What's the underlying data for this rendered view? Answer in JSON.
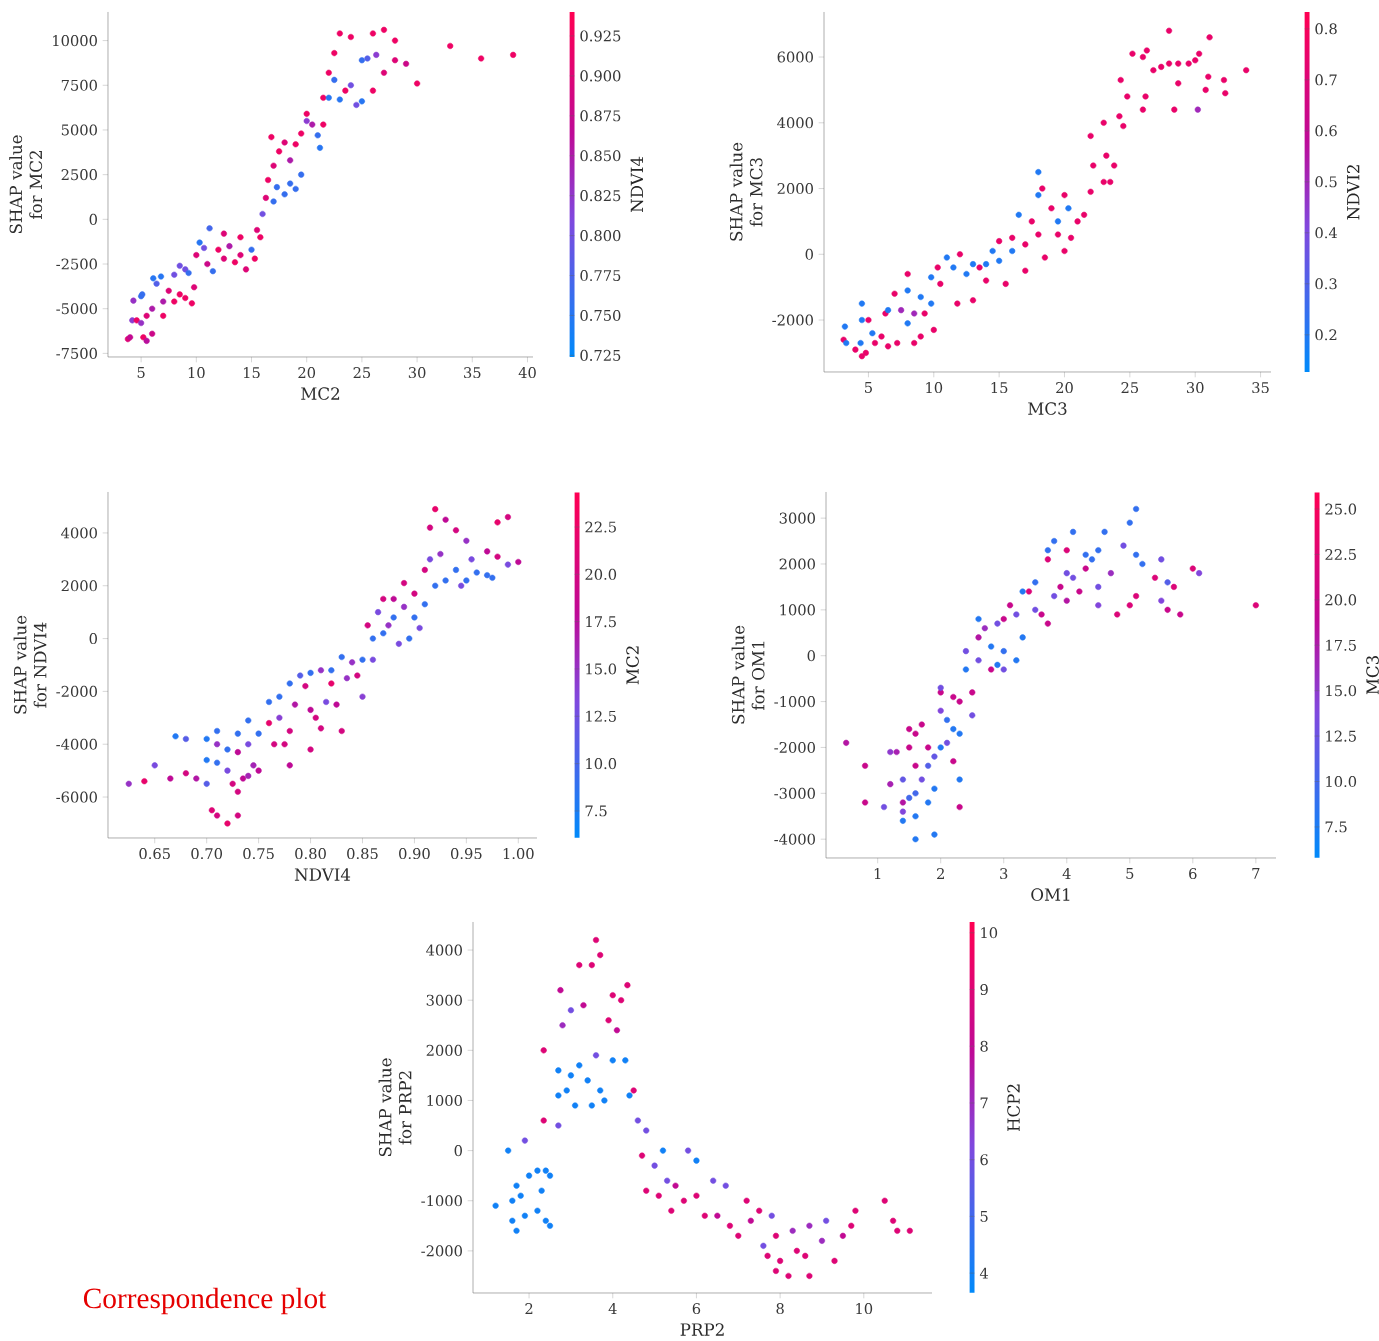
{
  "chart_data": [
    {
      "type": "scatter",
      "marker": "circle",
      "xlabel": "MC2",
      "ylabel": "SHAP value for MC2",
      "clabel": "NDVI4",
      "xlim": [
        2.0,
        40.5
      ],
      "ylim": [
        -7700,
        11600
      ],
      "xticks": [
        5,
        10,
        15,
        20,
        25,
        30,
        35,
        40
      ],
      "yticks": [
        -7500,
        -5000,
        -2500,
        0,
        2500,
        5000,
        7500,
        10000
      ],
      "clim": [
        0.724,
        0.94
      ],
      "cticks": [
        0.725,
        {
          "value": 0.75,
          "label": "0.750"
        },
        0.775,
        {
          "value": 0.8,
          "label": "0.800"
        },
        0.825,
        {
          "value": 0.85,
          "label": "0.850"
        },
        0.875,
        {
          "value": 0.9,
          "label": "0.900"
        },
        0.925
      ],
      "x": [
        3.8,
        4,
        4.2,
        4.3,
        4.6,
        5,
        5,
        5.1,
        5.2,
        5.5,
        5.5,
        6,
        6,
        6.1,
        6.4,
        6.8,
        7,
        7,
        7.5,
        8,
        8,
        8.5,
        8.5,
        9,
        9,
        9.3,
        9.6,
        9.8,
        10,
        10.3,
        10.7,
        11,
        11.2,
        11.5,
        12,
        12.5,
        12.5,
        13,
        13.5,
        14,
        14,
        14.5,
        15,
        15.3,
        15.5,
        15.8,
        16,
        16.3,
        16.5,
        16.8,
        17,
        17,
        17.3,
        17.5,
        18,
        18,
        18.5,
        18.5,
        19,
        19,
        19.5,
        19.5,
        20,
        20,
        20.5,
        21,
        21.2,
        21.5,
        21.5,
        22,
        22,
        22.5,
        22.5,
        23,
        23,
        23.5,
        24,
        24,
        24.5,
        25,
        25,
        25.5,
        26,
        26,
        26.3,
        27,
        27,
        28,
        28,
        29,
        30,
        33,
        35.8,
        38.7
      ],
      "values": [
        -6700,
        -6600,
        -5650,
        -4550,
        -5650,
        -5800,
        -4300,
        -4200,
        -6600,
        -6800,
        -5400,
        -6400,
        -5000,
        -3300,
        -3600,
        -3200,
        -5400,
        -4600,
        -4000,
        -3100,
        -4600,
        -2600,
        -4200,
        -4400,
        -2800,
        -3000,
        -4700,
        -3800,
        -2000,
        -1300,
        -1600,
        -2500,
        -500,
        -2900,
        -1700,
        -800,
        -2200,
        -1500,
        -2400,
        -1000,
        -2000,
        -2800,
        -1700,
        -2200,
        -600,
        -1000,
        300,
        1200,
        2200,
        4600,
        3000,
        1000,
        1800,
        3800,
        4300,
        1400,
        3300,
        2000,
        4200,
        1700,
        2500,
        4800,
        5900,
        5500,
        5300,
        4700,
        4000,
        5300,
        6800,
        8200,
        6800,
        9300,
        7800,
        6700,
        10400,
        7200,
        10200,
        7500,
        6400,
        8900,
        6600,
        9000,
        10400,
        7200,
        9200,
        10600,
        8200,
        10000,
        8900,
        8700,
        7600,
        9700,
        9000,
        9200
      ],
      "cvalues": [
        0.9,
        0.87,
        0.82,
        0.83,
        0.92,
        0.83,
        0.76,
        0.76,
        0.92,
        0.86,
        0.9,
        0.88,
        0.85,
        0.75,
        0.78,
        0.75,
        0.92,
        0.85,
        0.9,
        0.8,
        0.92,
        0.8,
        0.92,
        0.92,
        0.8,
        0.76,
        0.92,
        0.9,
        0.9,
        0.75,
        0.8,
        0.88,
        0.77,
        0.76,
        0.92,
        0.9,
        0.9,
        0.85,
        0.92,
        0.92,
        0.9,
        0.9,
        0.76,
        0.92,
        0.9,
        0.92,
        0.8,
        0.9,
        0.92,
        0.92,
        0.9,
        0.76,
        0.76,
        0.92,
        0.9,
        0.76,
        0.85,
        0.76,
        0.92,
        0.76,
        0.76,
        0.92,
        0.92,
        0.82,
        0.85,
        0.76,
        0.75,
        0.92,
        0.92,
        0.92,
        0.75,
        0.92,
        0.76,
        0.75,
        0.92,
        0.92,
        0.92,
        0.8,
        0.8,
        0.76,
        0.75,
        0.78,
        0.92,
        0.92,
        0.82,
        0.92,
        0.9,
        0.92,
        0.9,
        0.88,
        0.92,
        0.92,
        0.92,
        0.92
      ]
    },
    {
      "type": "scatter",
      "marker": "circle",
      "xlabel": "MC3",
      "ylabel": "SHAP value for MC3",
      "clabel": "NDVI2",
      "xlim": [
        1.6,
        35.8
      ],
      "ylim": [
        -3580,
        7370
      ],
      "xticks": [
        5,
        10,
        15,
        20,
        25,
        30,
        35
      ],
      "yticks": [
        -2000,
        0,
        2000,
        4000,
        6000
      ],
      "clim": [
        0.127,
        0.833
      ],
      "cticks": [
        0.2,
        0.3,
        0.4,
        0.5,
        0.6,
        0.7,
        0.8
      ],
      "x": [
        3.1,
        3.2,
        3.3,
        4,
        4.4,
        4.5,
        4.5,
        4.5,
        4.8,
        5,
        5.3,
        5.5,
        6,
        6.3,
        6.5,
        6.5,
        7,
        7.2,
        7.5,
        8,
        8,
        8,
        8.5,
        8.5,
        9,
        9,
        9.3,
        9.8,
        9.8,
        10,
        10.3,
        10.5,
        11,
        11.5,
        11.8,
        12,
        12.5,
        13,
        13,
        13.5,
        14,
        14,
        14.5,
        15,
        15,
        15.5,
        16,
        16,
        16.5,
        17,
        17,
        17.5,
        18,
        18,
        18,
        18.3,
        18.5,
        19,
        19.5,
        19.5,
        20,
        20,
        20.3,
        20.5,
        21,
        21.5,
        22,
        22,
        22.2,
        23,
        23,
        23.2,
        23.5,
        23.8,
        24.2,
        24.3,
        24.5,
        24.8,
        25.2,
        26,
        26,
        26.2,
        26.3,
        26.8,
        27.4,
        28,
        28,
        28.4,
        28.7,
        28.7,
        29.5,
        30,
        30.2,
        30.3,
        30.8,
        31,
        31.1,
        32.2,
        32.3,
        33.9
      ],
      "values": [
        -2600,
        -2200,
        -2700,
        -2900,
        -2700,
        -1500,
        -2000,
        -3100,
        -3000,
        -2000,
        -2400,
        -2700,
        -2500,
        -1800,
        -1700,
        -2800,
        -1200,
        -2700,
        -1700,
        -1100,
        -600,
        -2100,
        -1800,
        -2700,
        -1300,
        -2500,
        -1800,
        -1500,
        -700,
        -2300,
        -400,
        -900,
        -100,
        -400,
        -1500,
        0,
        -600,
        -1400,
        -300,
        -400,
        -300,
        -800,
        100,
        -200,
        400,
        -900,
        100,
        500,
        1200,
        300,
        -500,
        1000,
        2500,
        1800,
        600,
        2000,
        -100,
        1400,
        1000,
        600,
        1800,
        100,
        1400,
        500,
        1000,
        1200,
        1900,
        3600,
        2700,
        4000,
        2200,
        3000,
        2200,
        2700,
        4200,
        5300,
        3900,
        4800,
        6100,
        6000,
        4400,
        4800,
        6200,
        5600,
        5700,
        6800,
        5800,
        4400,
        5800,
        5200,
        5800,
        5900,
        4400,
        6100,
        5000,
        5400,
        6600,
        5300,
        4900,
        5600
      ],
      "cvalues": [
        0.75,
        0.2,
        0.2,
        0.75,
        0.2,
        0.2,
        0.2,
        0.75,
        0.75,
        0.75,
        0.2,
        0.75,
        0.75,
        0.75,
        0.2,
        0.75,
        0.75,
        0.75,
        0.5,
        0.2,
        0.75,
        0.2,
        0.5,
        0.75,
        0.2,
        0.75,
        0.75,
        0.2,
        0.2,
        0.75,
        0.75,
        0.75,
        0.2,
        0.2,
        0.75,
        0.75,
        0.2,
        0.75,
        0.2,
        0.75,
        0.2,
        0.75,
        0.2,
        0.2,
        0.75,
        0.75,
        0.2,
        0.75,
        0.2,
        0.75,
        0.75,
        0.75,
        0.2,
        0.2,
        0.75,
        0.75,
        0.75,
        0.75,
        0.2,
        0.75,
        0.75,
        0.75,
        0.2,
        0.75,
        0.75,
        0.75,
        0.75,
        0.75,
        0.75,
        0.75,
        0.75,
        0.75,
        0.75,
        0.75,
        0.75,
        0.75,
        0.75,
        0.75,
        0.75,
        0.75,
        0.75,
        0.75,
        0.75,
        0.75,
        0.75,
        0.75,
        0.75,
        0.75,
        0.75,
        0.75,
        0.75,
        0.75,
        0.5,
        0.75,
        0.75,
        0.75,
        0.75,
        0.75,
        0.75,
        0.75
      ]
    },
    {
      "type": "scatter",
      "marker": "circle",
      "xlabel": "NDVI4",
      "ylabel": "SHAP value for NDVI4",
      "clabel": "MC2",
      "xlim": [
        0.605,
        1.018
      ],
      "ylim": [
        -7550,
        5550
      ],
      "xticks": [
        0.65,
        {
          "value": 0.7,
          "label": "0.70"
        },
        0.75,
        {
          "value": 0.8,
          "label": "0.80"
        },
        0.85,
        {
          "value": 0.9,
          "label": "0.90"
        },
        0.95,
        {
          "value": 1.0,
          "label": "1.00"
        }
      ],
      "yticks": [
        -6000,
        -4000,
        -2000,
        0,
        2000,
        4000
      ],
      "clim": [
        6.07,
        24.35
      ],
      "cticks": [
        7.5,
        {
          "value": 10,
          "label": "10.0"
        },
        12.5,
        {
          "value": 15,
          "label": "15.0"
        },
        17.5,
        {
          "value": 20,
          "label": "20.0"
        },
        22.5
      ],
      "x": [
        0.625,
        0.64,
        0.65,
        0.665,
        0.67,
        0.68,
        0.68,
        0.69,
        0.7,
        0.7,
        0.7,
        0.705,
        0.71,
        0.71,
        0.71,
        0.71,
        0.72,
        0.72,
        0.72,
        0.725,
        0.73,
        0.73,
        0.73,
        0.73,
        0.735,
        0.74,
        0.74,
        0.74,
        0.745,
        0.75,
        0.75,
        0.76,
        0.76,
        0.765,
        0.77,
        0.77,
        0.775,
        0.78,
        0.78,
        0.78,
        0.785,
        0.79,
        0.795,
        0.8,
        0.8,
        0.8,
        0.805,
        0.81,
        0.81,
        0.815,
        0.82,
        0.82,
        0.825,
        0.83,
        0.83,
        0.835,
        0.84,
        0.845,
        0.85,
        0.85,
        0.855,
        0.86,
        0.86,
        0.865,
        0.87,
        0.87,
        0.875,
        0.88,
        0.88,
        0.885,
        0.89,
        0.89,
        0.895,
        0.9,
        0.9,
        0.905,
        0.91,
        0.91,
        0.915,
        0.915,
        0.92,
        0.92,
        0.925,
        0.93,
        0.93,
        0.94,
        0.94,
        0.945,
        0.95,
        0.95,
        0.955,
        0.96,
        0.97,
        0.97,
        0.975,
        0.98,
        0.98,
        0.99,
        0.99,
        1.0
      ],
      "values": [
        -5500,
        -5400,
        -4800,
        -5300,
        -3700,
        -3800,
        -5100,
        -5300,
        -3800,
        -4600,
        -5500,
        -6500,
        -3500,
        -4000,
        -4700,
        -6700,
        -4200,
        -5000,
        -7000,
        -5500,
        -3600,
        -4300,
        -5800,
        -6700,
        -5300,
        -3100,
        -4000,
        -5200,
        -4800,
        -3600,
        -5000,
        -2400,
        -3200,
        -4000,
        -2200,
        -3000,
        -4000,
        -1700,
        -4800,
        -3500,
        -2500,
        -1400,
        -1800,
        -1300,
        -2700,
        -4200,
        -3000,
        -1200,
        -3400,
        -2400,
        -1700,
        -1200,
        -2500,
        -700,
        -3500,
        -1500,
        -900,
        -1400,
        -800,
        -2200,
        500,
        0,
        -800,
        1000,
        200,
        1500,
        500,
        800,
        1500,
        -200,
        1200,
        2100,
        0,
        800,
        1700,
        400,
        1300,
        2600,
        3000,
        4200,
        4900,
        2000,
        3200,
        4500,
        2200,
        4100,
        2600,
        2000,
        3700,
        2200,
        3000,
        2500,
        3300,
        2400,
        2300,
        4400,
        3100,
        4600,
        2800,
        2900
      ],
      "cvalues": [
        15,
        22,
        13,
        18,
        8,
        11,
        20,
        17,
        8,
        8,
        11,
        21,
        9,
        15,
        9,
        20,
        9,
        13,
        22,
        20,
        9,
        18,
        20,
        20,
        18,
        9,
        13,
        16,
        16,
        9,
        18,
        9,
        22,
        20,
        9,
        14,
        20,
        9,
        18,
        20,
        17,
        11,
        20,
        9,
        18,
        20,
        20,
        15,
        20,
        13,
        22,
        9,
        18,
        9,
        20,
        15,
        15,
        20,
        9,
        14,
        20,
        9,
        13,
        13,
        9,
        20,
        15,
        9,
        18,
        13,
        15,
        20,
        9,
        9,
        20,
        13,
        9,
        20,
        13,
        20,
        22,
        9,
        15,
        18,
        9,
        20,
        9,
        13,
        15,
        9,
        13,
        9,
        18,
        9,
        9,
        22,
        20,
        20,
        13,
        18
      ]
    },
    {
      "type": "scatter",
      "marker": "circle",
      "xlabel": "OM1",
      "ylabel": "SHAP value for OM1",
      "clabel": "MC3",
      "xlim": [
        0.18,
        7.32
      ],
      "ylim": [
        -4410,
        3570
      ],
      "xticks": [
        1,
        2,
        3,
        4,
        5,
        6,
        7
      ],
      "yticks": [
        -4000,
        -3000,
        -2000,
        -1000,
        0,
        1000,
        2000,
        3000
      ],
      "clim": [
        5.79,
        25.94
      ],
      "cticks": [
        7.5,
        {
          "value": 10,
          "label": "10.0"
        },
        12.5,
        {
          "value": 15,
          "label": "15.0"
        },
        17.5,
        {
          "value": 20,
          "label": "20.0"
        },
        22.5,
        {
          "value": 25,
          "label": "25.0"
        }
      ],
      "x": [
        0.5,
        0.8,
        0.8,
        1.1,
        1.2,
        1.2,
        1.3,
        1.4,
        1.4,
        1.4,
        1.4,
        1.5,
        1.5,
        1.5,
        1.6,
        1.6,
        1.6,
        1.6,
        1.6,
        1.7,
        1.7,
        1.8,
        1.8,
        1.8,
        1.9,
        1.9,
        1.9,
        2,
        2,
        2,
        2,
        2.1,
        2.1,
        2.2,
        2.2,
        2.2,
        2.3,
        2.3,
        2.3,
        2.3,
        2.4,
        2.4,
        2.5,
        2.5,
        2.6,
        2.6,
        2.6,
        2.7,
        2.8,
        2.8,
        2.9,
        2.9,
        3,
        3,
        3,
        3.1,
        3.2,
        3.2,
        3.3,
        3.3,
        3.4,
        3.5,
        3.5,
        3.6,
        3.7,
        3.7,
        3.7,
        3.8,
        3.8,
        3.9,
        4,
        4,
        4,
        4.1,
        4.1,
        4.2,
        4.3,
        4.3,
        4.4,
        4.5,
        4.5,
        4.5,
        4.6,
        4.7,
        4.8,
        4.9,
        5,
        5,
        5.1,
        5.1,
        5.1,
        5.2,
        5.4,
        5.5,
        5.5,
        5.6,
        5.6,
        5.7,
        5.8,
        6,
        6.1,
        7
      ],
      "values": [
        -1900,
        -2400,
        -3200,
        -3300,
        -2100,
        -2800,
        -2100,
        -2700,
        -3200,
        -3400,
        -3600,
        -1600,
        -2000,
        -3100,
        -1700,
        -2400,
        -3000,
        -3500,
        -4000,
        -2700,
        -1500,
        -2000,
        -2400,
        -3200,
        -2200,
        -2900,
        -3900,
        -1200,
        -800,
        -2000,
        -700,
        -1400,
        -1900,
        -900,
        -1600,
        -2300,
        -1000,
        -1700,
        -2700,
        -3300,
        -300,
        100,
        -800,
        -1300,
        800,
        400,
        -100,
        600,
        200,
        -300,
        700,
        -200,
        800,
        100,
        -300,
        1100,
        900,
        -100,
        1400,
        400,
        1400,
        1600,
        1000,
        900,
        2300,
        2100,
        700,
        2500,
        1300,
        1500,
        2300,
        1800,
        1200,
        2700,
        1700,
        1400,
        2200,
        1900,
        2100,
        2300,
        1500,
        1100,
        2700,
        1800,
        900,
        2400,
        2900,
        1100,
        3200,
        2200,
        1300,
        2000,
        1700,
        2100,
        1200,
        1000,
        1600,
        1500,
        900,
        1900,
        1800,
        1100
      ],
      "cvalues": [
        18,
        20,
        20,
        13,
        15,
        17,
        17,
        12,
        18,
        14,
        8,
        20,
        20,
        10,
        20,
        20,
        10,
        8,
        8,
        13,
        20,
        20,
        11,
        8,
        12,
        8,
        8,
        14,
        20,
        8,
        13,
        9,
        13,
        20,
        8,
        20,
        20,
        8,
        8,
        20,
        8,
        13,
        20,
        13,
        8,
        18,
        13,
        16,
        8,
        20,
        13,
        8,
        20,
        9,
        13,
        20,
        13,
        8,
        8,
        8,
        22,
        9,
        13,
        20,
        9,
        22,
        20,
        9,
        13,
        20,
        22,
        13,
        18,
        9,
        13,
        20,
        9,
        20,
        9,
        9,
        13,
        14,
        9,
        16,
        22,
        13,
        9,
        22,
        9,
        9,
        22,
        9,
        22,
        13,
        14,
        20,
        11,
        22,
        20,
        22,
        14,
        22
      ]
    },
    {
      "type": "scatter",
      "marker": "circle",
      "xlabel": "PRP2",
      "ylabel": "SHAP value for PRP2",
      "clabel": "HCP2",
      "xlim": [
        0.66,
        11.63
      ],
      "ylim": [
        -2840,
        4560
      ],
      "xticks": [
        2,
        4,
        6,
        8,
        10
      ],
      "yticks": [
        -2000,
        -1000,
        0,
        1000,
        2000,
        3000,
        4000
      ],
      "clim": [
        3.65,
        10.19
      ],
      "cticks": [
        4,
        5,
        6,
        7,
        8,
        9,
        10
      ],
      "annotations": [
        "Correspondence plot"
      ],
      "x": [
        1.2,
        1.5,
        1.6,
        1.6,
        1.7,
        1.7,
        1.8,
        1.9,
        1.9,
        2,
        2.2,
        2.2,
        2.3,
        2.35,
        2.35,
        2.4,
        2.4,
        2.5,
        2.5,
        2.7,
        2.7,
        2.7,
        2.75,
        2.8,
        2.9,
        3,
        3,
        3.1,
        3.2,
        3.2,
        3.3,
        3.4,
        3.5,
        3.5,
        3.6,
        3.6,
        3.7,
        3.7,
        3.8,
        3.9,
        4,
        4,
        4.1,
        4.2,
        4.3,
        4.35,
        4.4,
        4.5,
        4.6,
        4.8,
        4.7,
        4.8,
        5,
        5.1,
        5.2,
        5.3,
        5.4,
        5.5,
        5.7,
        5.8,
        6,
        6,
        6.2,
        6.4,
        6.5,
        6.7,
        6.8,
        7,
        7.2,
        7.3,
        7.5,
        7.6,
        7.7,
        7.8,
        7.9,
        7.9,
        8,
        8.2,
        8.3,
        8.4,
        8.6,
        8.7,
        8.7,
        9,
        9.1,
        9.3,
        9.5,
        9.7,
        9.8,
        10.5,
        10.7,
        10.8,
        11.1
      ],
      "values": [
        -1100,
        0,
        -1000,
        -1400,
        -700,
        -1600,
        -900,
        -1300,
        200,
        -500,
        -400,
        -1200,
        -800,
        600,
        2000,
        -1400,
        -400,
        -500,
        -1500,
        500,
        1100,
        1600,
        3200,
        2500,
        1200,
        1500,
        2800,
        900,
        3700,
        1700,
        2900,
        1400,
        3700,
        900,
        4200,
        1900,
        3900,
        1200,
        1000,
        2600,
        3100,
        1800,
        2400,
        3000,
        1800,
        3300,
        1100,
        1200,
        600,
        400,
        -100,
        -800,
        -300,
        -900,
        0,
        -600,
        -1200,
        -700,
        -1000,
        0,
        -200,
        -900,
        -1300,
        -600,
        -1300,
        -700,
        -1500,
        -1700,
        -1000,
        -1400,
        -1200,
        -1900,
        -2100,
        -1300,
        -1700,
        -2400,
        -2200,
        -2500,
        -1600,
        -2000,
        -2100,
        -2500,
        -1500,
        -1800,
        -1400,
        -2200,
        -1700,
        -1500,
        -1200,
        -1000,
        -1400,
        -1600,
        -1600
      ],
      "cvalues": [
        4,
        4,
        4,
        4,
        4,
        4,
        4,
        4,
        6,
        4,
        4,
        4,
        4,
        9,
        9,
        4,
        4,
        4,
        4,
        6,
        4,
        4,
        8,
        7,
        4,
        4,
        6,
        4,
        9,
        4,
        8,
        4,
        9,
        4,
        9,
        6,
        9,
        4,
        4,
        9,
        9,
        4,
        8,
        9,
        4,
        9,
        4,
        9,
        6,
        6,
        9,
        9,
        6,
        9,
        4,
        6,
        9,
        8,
        9,
        6,
        4,
        9,
        9,
        6,
        8,
        6,
        9,
        9,
        9,
        8,
        9,
        6,
        9,
        6,
        9,
        9,
        9,
        9,
        7,
        9,
        9,
        9,
        7,
        7,
        6,
        9,
        8,
        9,
        9,
        9,
        9,
        9,
        9
      ]
    }
  ]
}
